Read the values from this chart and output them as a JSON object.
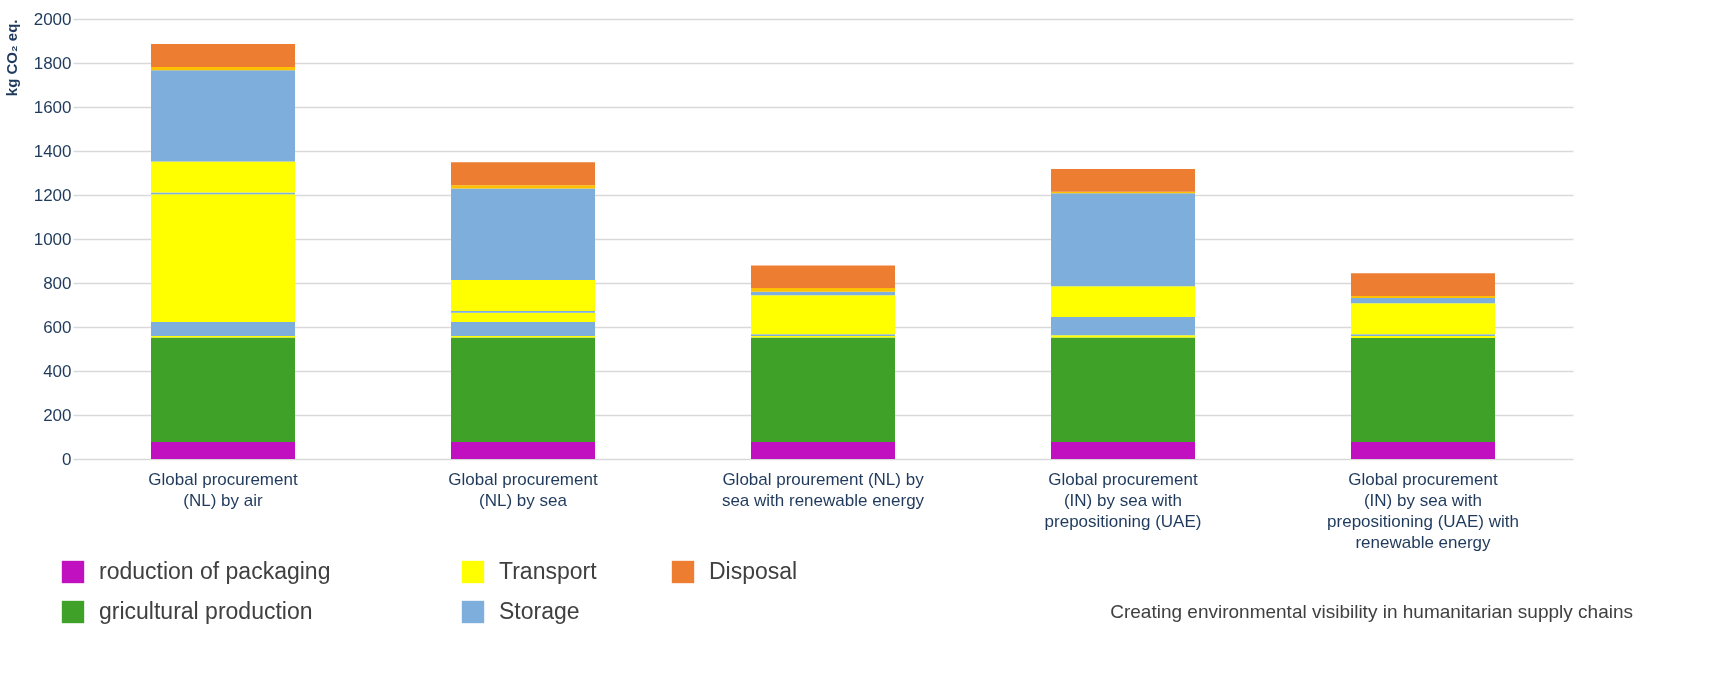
{
  "chart_data": {
    "type": "bar",
    "stacked": true,
    "ylabel": "kg CO₂ eq.",
    "categories": [
      "Global procurement\n(NL) by air",
      "Global procurement\n(NL) by sea",
      "Global prourement (NL) by\nsea with renewable energy",
      "Global procurement\n(IN) by sea with\nprepositioning (UAE)",
      "Global procurement\n(IN) by sea with\nprepositioning (UAE) with\nrenewable energy"
    ],
    "series": [
      {
        "name": "roduction of packaging",
        "color": "#c010c0",
        "values": [
          77,
          77,
          77,
          77,
          77
        ]
      },
      {
        "name": "gricultural production",
        "color": "#3fa128",
        "values": [
          475,
          475,
          475,
          475,
          473
        ]
      },
      {
        "name": "Transport",
        "color": "#ffff00",
        "values": [
          7,
          7,
          7,
          10,
          9
        ]
      },
      {
        "name": "Storage",
        "color": "#7eaedc",
        "values": [
          64,
          64,
          8,
          83,
          8
        ]
      },
      {
        "color": "#ffff00",
        "values": [
          580,
          42,
          177,
          null,
          141
        ]
      },
      {
        "color": "#7eaedc",
        "values": [
          8,
          8,
          null,
          null,
          null
        ]
      },
      {
        "color": "#ffff00",
        "values": [
          141,
          141,
          null,
          140,
          null
        ]
      },
      {
        "color": "#7eaedc",
        "values": [
          415,
          415,
          16,
          423,
          24
        ]
      },
      {
        "color": "#ffc000",
        "values": [
          15,
          15,
          17,
          7,
          9
        ]
      },
      {
        "name": "Disposal",
        "color": "#ed7d31",
        "values": [
          104,
          105,
          103,
          103,
          103
        ]
      }
    ],
    "ylim": [
      0,
      2000
    ],
    "yticks": [
      0,
      200,
      400,
      600,
      800,
      1000,
      1200,
      1400,
      1600,
      1800,
      2000
    ],
    "grid": "y",
    "legend": "bottom",
    "annotations": [
      "Creating environmental visibility in humanitarian supply chains"
    ]
  }
}
